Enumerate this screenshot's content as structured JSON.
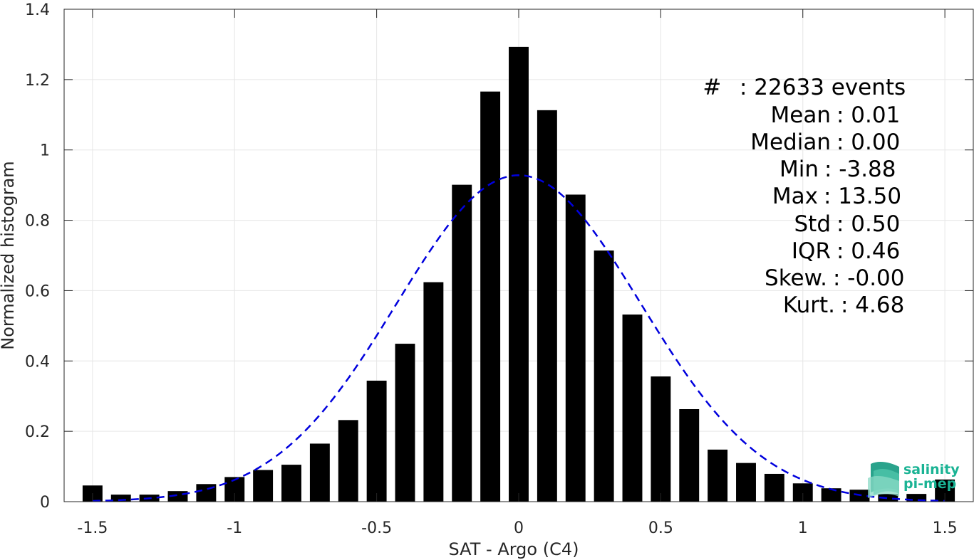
{
  "chart_data": {
    "type": "bar",
    "xlabel": "SAT - Argo (C4)",
    "ylabel": "Normalized histogram",
    "xlim": [
      -1.6,
      1.6
    ],
    "ylim": [
      0,
      1.4
    ],
    "xticks": [
      -1.5,
      -1,
      -0.5,
      0,
      0.5,
      1,
      1.5
    ],
    "xtick_labels": [
      "-1.5",
      "-1",
      "-0.5",
      "0",
      "0.5",
      "1",
      "1.5"
    ],
    "yticks": [
      0,
      0.2,
      0.4,
      0.6,
      0.8,
      1,
      1.2,
      1.4
    ],
    "ytick_labels": [
      "0",
      "0.2",
      "0.4",
      "0.6",
      "0.8",
      "1",
      "1.2",
      "1.4"
    ],
    "grid": true,
    "bar_width": 0.07,
    "x": [
      -1.5,
      -1.4,
      -1.3,
      -1.2,
      -1.1,
      -1.0,
      -0.9,
      -0.8,
      -0.7,
      -0.6,
      -0.5,
      -0.4,
      -0.3,
      -0.2,
      -0.1,
      0.0,
      0.1,
      0.2,
      0.3,
      0.4,
      0.5,
      0.6,
      0.7,
      0.8,
      0.9,
      1.0,
      1.1,
      1.2,
      1.3,
      1.4,
      1.5
    ],
    "values": [
      0.046,
      0.02,
      0.02,
      0.03,
      0.05,
      0.07,
      0.09,
      0.105,
      0.165,
      0.232,
      0.344,
      0.449,
      0.624,
      0.901,
      1.166,
      1.293,
      1.113,
      0.873,
      0.714,
      0.532,
      0.356,
      0.263,
      0.148,
      0.11,
      0.079,
      0.052,
      0.038,
      0.034,
      0.022,
      0.022,
      0.063
    ],
    "fit_curve": {
      "type": "normal",
      "mean": 0.0,
      "std": 0.43,
      "peak": 0.928,
      "color": "#0000dd",
      "style": "dashed"
    },
    "bar_color": "#000000",
    "stats": [
      {
        "label": "#  ",
        "value": ": 22633 events"
      },
      {
        "label": "Mean",
        "value": ": 0.01"
      },
      {
        "label": "Median",
        "value": ": 0.00"
      },
      {
        "label": "Min",
        "value": ": -3.88"
      },
      {
        "label": "Max",
        "value": ": 13.50"
      },
      {
        "label": "Std",
        "value": ": 0.50"
      },
      {
        "label": "IQR",
        "value": ": 0.46"
      },
      {
        "label": "Skew.",
        "value": ": -0.00"
      },
      {
        "label": "Kurt.",
        "value": ": 4.68"
      }
    ]
  },
  "logo": {
    "line1": "salinity",
    "line2": "pi-mep",
    "color": "#1ab394",
    "icon": "wave-icon"
  }
}
